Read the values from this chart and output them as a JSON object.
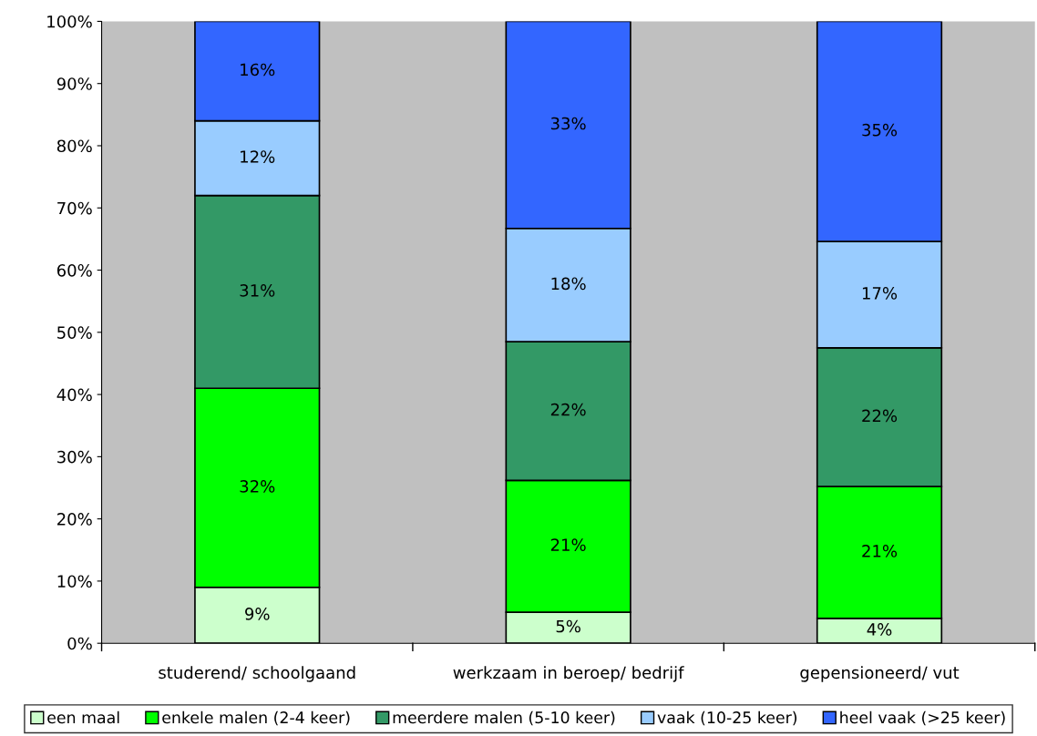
{
  "chart_data": {
    "type": "bar",
    "stacked": true,
    "categories": [
      "studerend/ schoolgaand",
      "werkzaam in beroep/ bedrijf",
      "gepensioneerd/ vut"
    ],
    "series": [
      {
        "name": "een maal",
        "color": "#ccffcc",
        "values": [
          9,
          5.0,
          4.0
        ],
        "value_labels": [
          "9%",
          "5%",
          "4%"
        ]
      },
      {
        "name": "enkele malen (2-4 keer)",
        "color": "#00ff00",
        "values": [
          32,
          21.2,
          21.2
        ],
        "value_labels": [
          "32%",
          "21%",
          "21%"
        ]
      },
      {
        "name": "meerdere malen (5-10 keer)",
        "color": "#339966",
        "values": [
          31,
          22.3,
          22.3
        ],
        "value_labels": [
          "31%",
          "22%",
          "22%"
        ]
      },
      {
        "name": "vaak (10-25 keer)",
        "color": "#99ccff",
        "values": [
          12,
          18.2,
          17.1
        ],
        "value_labels": [
          "12%",
          "18%",
          "17%"
        ]
      },
      {
        "name": "heel vaak (>25 keer)",
        "color": "#3366ff",
        "values": [
          16,
          33.3,
          35.4
        ],
        "value_labels": [
          "16%",
          "33%",
          "35%"
        ]
      }
    ],
    "ylim": [
      0,
      100
    ],
    "yticks": [
      {
        "value": 0,
        "label": "0%"
      },
      {
        "value": 10,
        "label": "10%"
      },
      {
        "value": 20,
        "label": "20%"
      },
      {
        "value": 30,
        "label": "30%"
      },
      {
        "value": 40,
        "label": "40%"
      },
      {
        "value": 50,
        "label": "50%"
      },
      {
        "value": 60,
        "label": "60%"
      },
      {
        "value": 70,
        "label": "70%"
      },
      {
        "value": 80,
        "label": "80%"
      },
      {
        "value": 90,
        "label": "90%"
      },
      {
        "value": 100,
        "label": "100%"
      }
    ],
    "grid": false,
    "legend": "bottom"
  }
}
